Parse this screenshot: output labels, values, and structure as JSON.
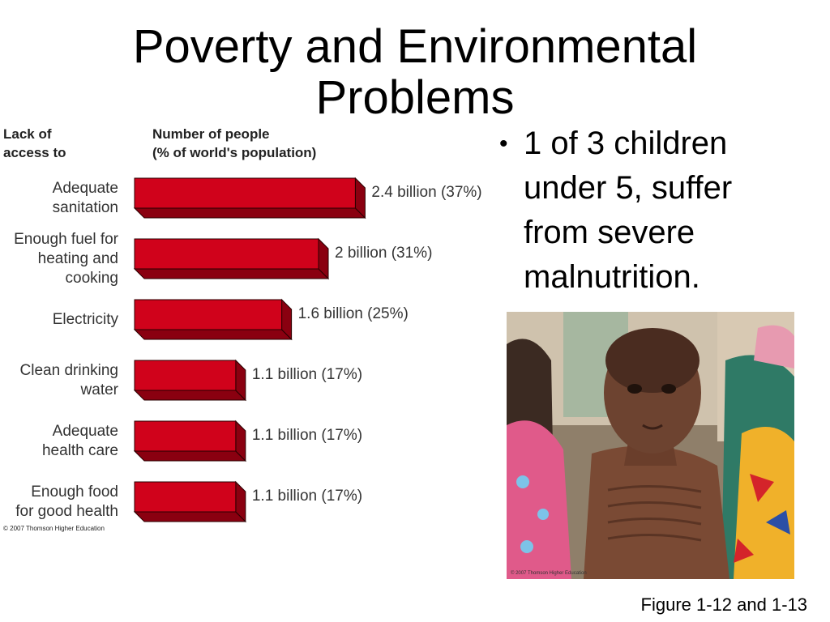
{
  "slide": {
    "title": "Poverty and Environmental\nProblems",
    "bullet": "1 of 3 children\nunder 5, suffer\nfrom severe\nmalnutrition.",
    "caption": "Figure 1-12 and 1-13",
    "photo_credit": "© 2007 Thomson Higher Education"
  },
  "chart_data": {
    "type": "bar",
    "orientation": "horizontal",
    "style": "3d",
    "category_header": "Lack of\naccess to",
    "value_header": "Number of people\n(% of world's population)",
    "categories": [
      "Adequate\nsanitation",
      "Enough fuel for\nheating and\ncooking",
      "Electricity",
      "Clean drinking\nwater",
      "Adequate\nhealth care",
      "Enough food\nfor good health"
    ],
    "values": [
      2.4,
      2.0,
      1.6,
      1.1,
      1.1,
      1.1
    ],
    "percent_of_world": [
      37,
      31,
      25,
      17,
      17,
      17
    ],
    "value_labels": [
      "2.4 billion (37%)",
      "2 billion (31%)",
      "1.6 billion (25%)",
      "1.1 billion (17%)",
      "1.1 billion (17%)",
      "1.1 billion (17%)"
    ],
    "unit": "billion",
    "copyright": "© 2007 Thomson Higher Education",
    "colors": {
      "bar_front": "#d0021b",
      "bar_top": "#b10015",
      "bar_side": "#8a0010",
      "outline": "#2a0000"
    }
  }
}
